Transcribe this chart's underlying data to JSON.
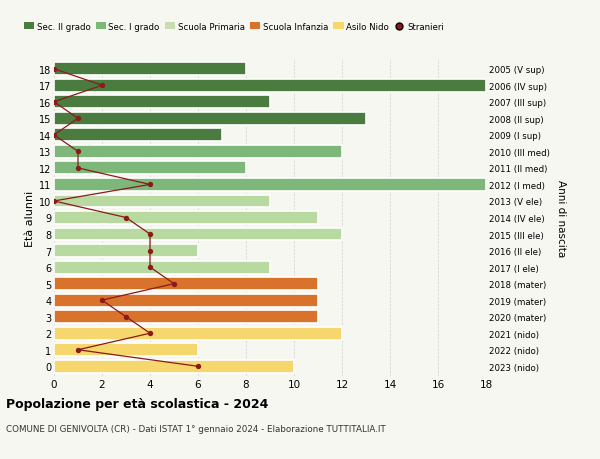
{
  "ages": [
    18,
    17,
    16,
    15,
    14,
    13,
    12,
    11,
    10,
    9,
    8,
    7,
    6,
    5,
    4,
    3,
    2,
    1,
    0
  ],
  "years": [
    "2005 (V sup)",
    "2006 (IV sup)",
    "2007 (III sup)",
    "2008 (II sup)",
    "2009 (I sup)",
    "2010 (III med)",
    "2011 (II med)",
    "2012 (I med)",
    "2013 (V ele)",
    "2014 (IV ele)",
    "2015 (III ele)",
    "2016 (II ele)",
    "2017 (I ele)",
    "2018 (mater)",
    "2019 (mater)",
    "2020 (mater)",
    "2021 (nido)",
    "2022 (nido)",
    "2023 (nido)"
  ],
  "bar_values": [
    8,
    18,
    9,
    13,
    7,
    12,
    8,
    18,
    9,
    11,
    12,
    6,
    9,
    11,
    11,
    11,
    12,
    6,
    10
  ],
  "bar_colors": [
    "#4a7c3f",
    "#4a7c3f",
    "#4a7c3f",
    "#4a7c3f",
    "#4a7c3f",
    "#7db87a",
    "#7db87a",
    "#7db87a",
    "#b8d9a0",
    "#b8d9a0",
    "#b8d9a0",
    "#b8d9a0",
    "#b8d9a0",
    "#d9722a",
    "#d9722a",
    "#d9722a",
    "#f5d76e",
    "#f5d76e",
    "#f5d76e"
  ],
  "stranieri_values": [
    0,
    2,
    0,
    1,
    0,
    1,
    1,
    4,
    0,
    3,
    4,
    4,
    4,
    5,
    2,
    3,
    4,
    1,
    6
  ],
  "legend_labels": [
    "Sec. II grado",
    "Sec. I grado",
    "Scuola Primaria",
    "Scuola Infanzia",
    "Asilo Nido",
    "Stranieri"
  ],
  "legend_colors": [
    "#4a7c3f",
    "#7db87a",
    "#c8ddb0",
    "#d9722a",
    "#f5d76e",
    "#8b1a1a"
  ],
  "xlim": [
    0,
    18
  ],
  "ylabel_left": "Età alunni",
  "ylabel_right": "Anni di nascita",
  "title": "Popolazione per età scolastica - 2024",
  "subtitle": "COMUNE DI GENIVOLTA (CR) - Dati ISTAT 1° gennaio 2024 - Elaborazione TUTTITALIA.IT",
  "bg_color": "#f7f7f2"
}
